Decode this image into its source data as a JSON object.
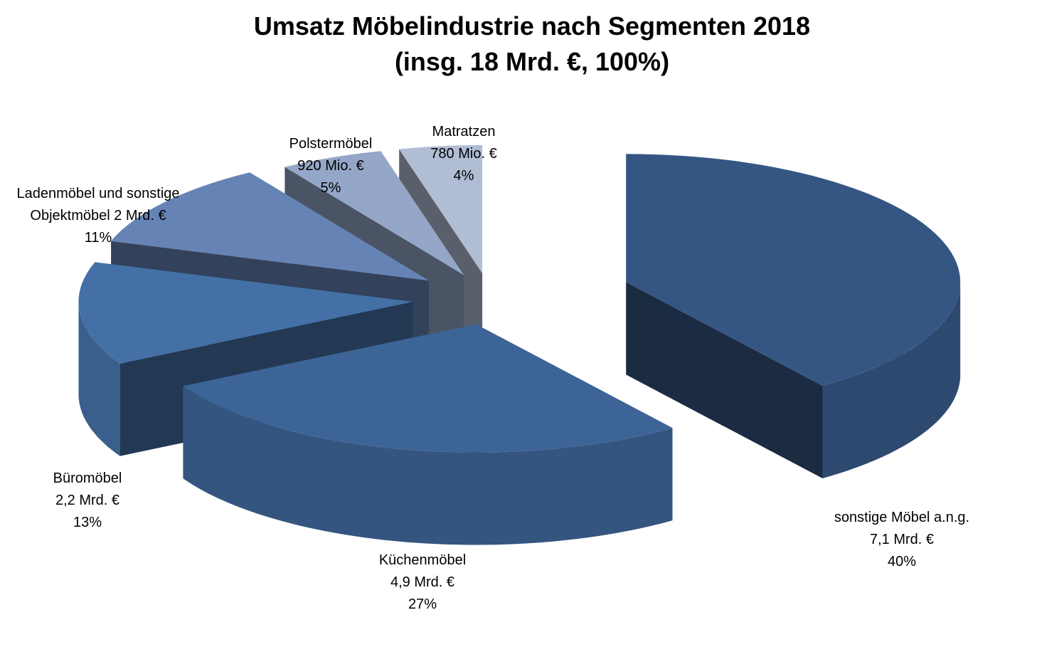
{
  "chart_data": {
    "type": "pie3d",
    "title": "Umsatz Möbelindustrie nach Segmenten 2018",
    "subtitle": "(insg. 18 Mrd. €, 100%)",
    "categories": [
      "sonstige Möbel a.n.g.",
      "Küchenmöbel",
      "Büromöbel",
      "Ladenmöbel und sonstige Objektmöbel",
      "Polstermöbel",
      "Matratzen"
    ],
    "amounts": [
      "7,1 Mrd. €",
      "4,9 Mrd. €",
      "2,2 Mrd. €",
      "2 Mrd. €",
      "920 Mio. €",
      "780 Mio. €"
    ],
    "values": [
      40,
      27,
      13,
      11,
      5,
      4
    ],
    "value_labels": [
      "40%",
      "27%",
      "13%",
      "11%",
      "5%",
      "4%"
    ],
    "colors": [
      "#355683",
      "#3d6496",
      "#4470a6",
      "#6584b5",
      "#94a7c8",
      "#b1bdd5"
    ]
  }
}
